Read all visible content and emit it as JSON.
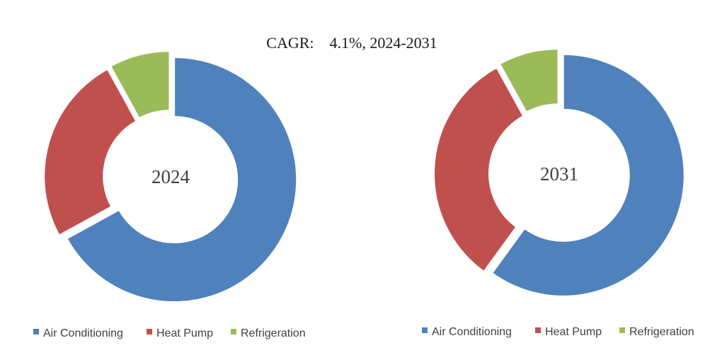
{
  "title": "CAGR:    4.1%, 2024-2031",
  "chart_data": [
    {
      "type": "pie",
      "center_label": "2024",
      "categories": [
        "Air Conditioning",
        "Heat Pump",
        "Refrigeration"
      ],
      "values": [
        67,
        25,
        8
      ],
      "colors": [
        "#4F81BD",
        "#C0504D",
        "#9BBB59"
      ],
      "legend": "bottom"
    },
    {
      "type": "pie",
      "center_label": "2031",
      "categories": [
        "Air Conditioning",
        "Heat Pump",
        "Refrigeration"
      ],
      "values": [
        60,
        32,
        8
      ],
      "colors": [
        "#4F81BD",
        "#C0504D",
        "#9BBB59"
      ],
      "legend": "bottom"
    }
  ]
}
